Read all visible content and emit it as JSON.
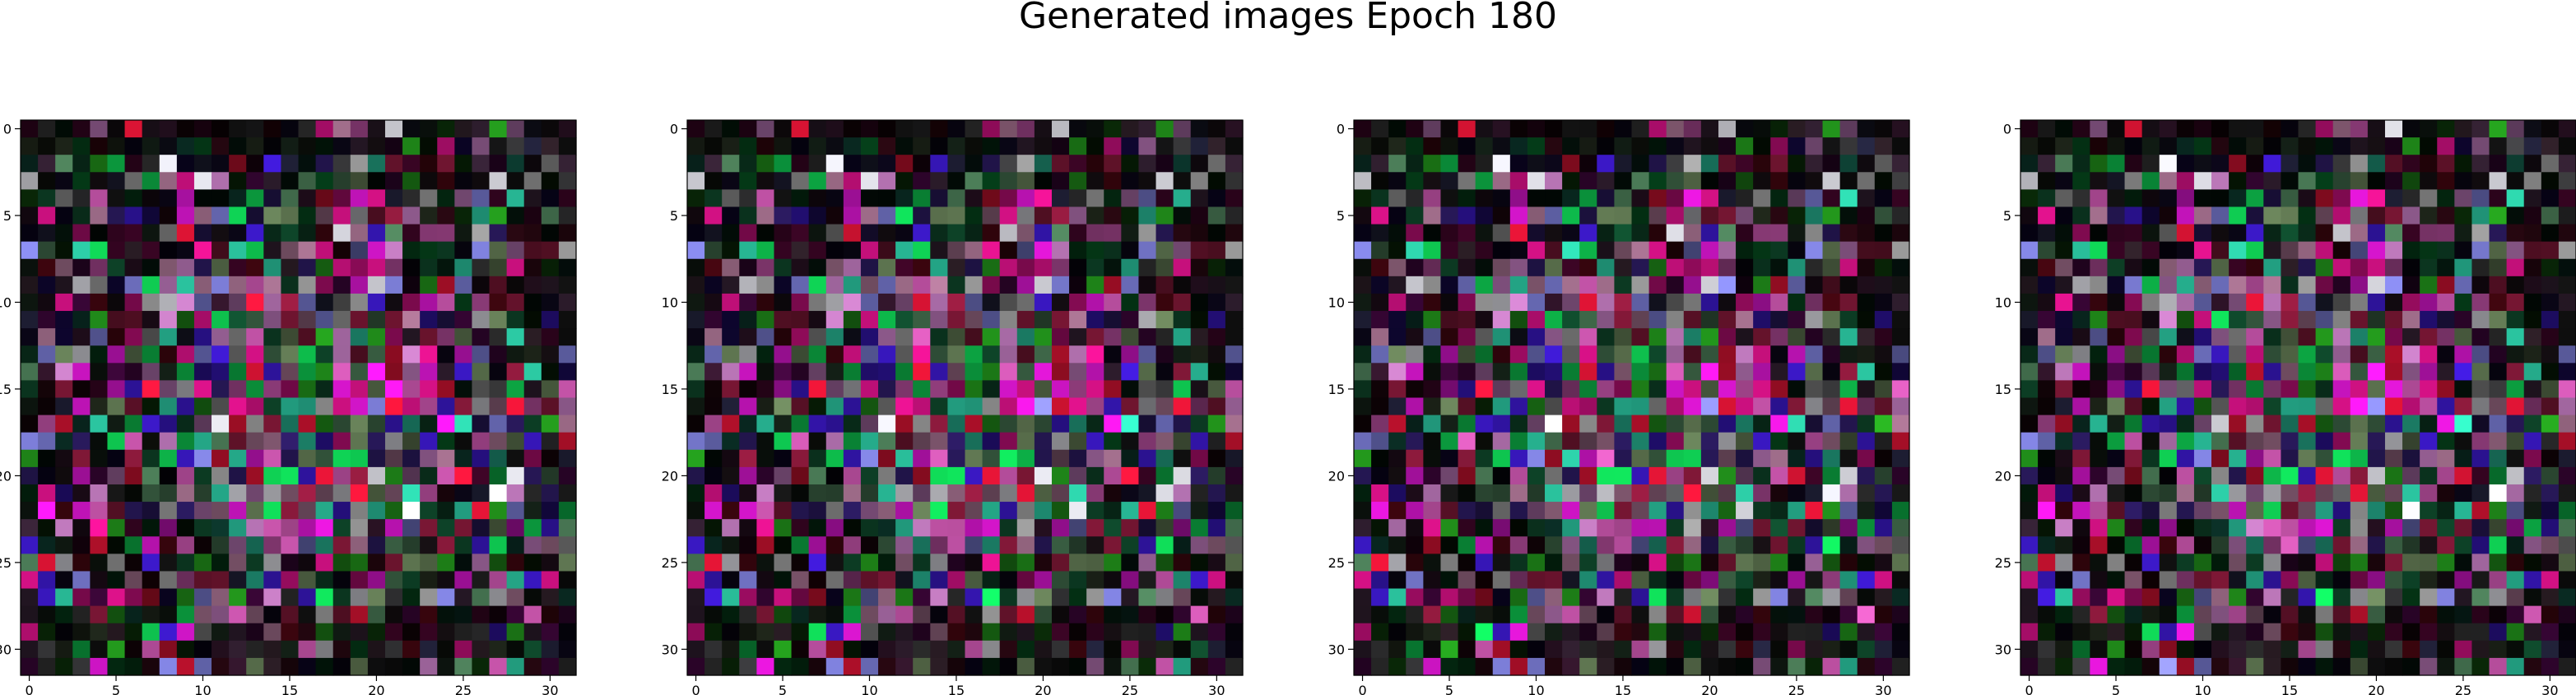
{
  "figure": {
    "title": "Generated images Epoch 180"
  },
  "chart_data": [
    {
      "type": "heatmap",
      "subtitle": "",
      "xlabel": "",
      "ylabel": "",
      "grid": false,
      "image_shape": [
        32,
        32,
        3
      ],
      "xlim": [
        -0.5,
        31.5
      ],
      "ylim": [
        31.5,
        -0.5
      ],
      "x_ticks": [
        0,
        5,
        10,
        15,
        20,
        25,
        30
      ],
      "y_ticks": [
        0,
        5,
        10,
        15,
        20,
        25,
        30
      ],
      "x_tick_labels": [
        "0",
        "5",
        "10",
        "15",
        "20",
        "25",
        "30"
      ],
      "y_tick_labels": [
        "0",
        "5",
        "10",
        "15",
        "20",
        "25",
        "30"
      ],
      "palette": [
        "#f118e6",
        "#e0128c",
        "#f5163a",
        "#8a8cf0",
        "#c77ec4",
        "#6f8a5f",
        "#4a7a56",
        "#2fd9b0",
        "#10e05a",
        "#25a11e",
        "#0f4a2c",
        "#2a1a5e",
        "#3a18c4",
        "#d45ab6",
        "#8c1a3c",
        "#b07898",
        "#9a9a9a",
        "#e8e8f0"
      ]
    },
    {
      "type": "heatmap",
      "subtitle": "",
      "xlabel": "",
      "ylabel": "",
      "grid": false,
      "image_shape": [
        32,
        32,
        3
      ],
      "xlim": [
        -0.5,
        31.5
      ],
      "ylim": [
        31.5,
        -0.5
      ],
      "x_ticks": [
        0,
        5,
        10,
        15,
        20,
        25,
        30
      ],
      "y_ticks": [
        0,
        5,
        10,
        15,
        20,
        25,
        30
      ],
      "x_tick_labels": [
        "0",
        "5",
        "10",
        "15",
        "20",
        "25",
        "30"
      ],
      "y_tick_labels": [
        "0",
        "5",
        "10",
        "15",
        "20",
        "25",
        "30"
      ],
      "palette": [
        "#f118e6",
        "#e0128c",
        "#f5163a",
        "#8a8cf0",
        "#c77ec4",
        "#6f8a5f",
        "#4a7a56",
        "#2fd9b0",
        "#10e05a",
        "#25a11e",
        "#0f4a2c",
        "#2a1a5e",
        "#3a18c4",
        "#d45ab6",
        "#8c1a3c",
        "#b07898",
        "#9a9a9a",
        "#e8e8f0"
      ]
    },
    {
      "type": "heatmap",
      "subtitle": "",
      "xlabel": "",
      "ylabel": "",
      "grid": false,
      "image_shape": [
        32,
        32,
        3
      ],
      "xlim": [
        -0.5,
        31.5
      ],
      "ylim": [
        31.5,
        -0.5
      ],
      "x_ticks": [
        0,
        5,
        10,
        15,
        20,
        25,
        30
      ],
      "y_ticks": [
        0,
        5,
        10,
        15,
        20,
        25,
        30
      ],
      "x_tick_labels": [
        "0",
        "5",
        "10",
        "15",
        "20",
        "25",
        "30"
      ],
      "y_tick_labels": [
        "0",
        "5",
        "10",
        "15",
        "20",
        "25",
        "30"
      ],
      "palette": [
        "#f118e6",
        "#e0128c",
        "#f5163a",
        "#8a8cf0",
        "#c77ec4",
        "#6f8a5f",
        "#4a7a56",
        "#2fd9b0",
        "#10e05a",
        "#25a11e",
        "#0f4a2c",
        "#2a1a5e",
        "#3a18c4",
        "#d45ab6",
        "#8c1a3c",
        "#b07898",
        "#9a9a9a",
        "#e8e8f0"
      ]
    },
    {
      "type": "heatmap",
      "subtitle": "",
      "xlabel": "",
      "ylabel": "",
      "grid": false,
      "image_shape": [
        32,
        32,
        3
      ],
      "xlim": [
        -0.5,
        31.5
      ],
      "ylim": [
        31.5,
        -0.5
      ],
      "x_ticks": [
        0,
        5,
        10,
        15,
        20,
        25,
        30
      ],
      "y_ticks": [
        0,
        5,
        10,
        15,
        20,
        25,
        30
      ],
      "x_tick_labels": [
        "0",
        "5",
        "10",
        "15",
        "20",
        "25",
        "30"
      ],
      "y_tick_labels": [
        "0",
        "5",
        "10",
        "15",
        "20",
        "25",
        "30"
      ],
      "palette": [
        "#f118e6",
        "#e0128c",
        "#f5163a",
        "#8a8cf0",
        "#c77ec4",
        "#6f8a5f",
        "#4a7a56",
        "#2fd9b0",
        "#10e05a",
        "#25a11e",
        "#0f4a2c",
        "#2a1a5e",
        "#3a18c4",
        "#d45ab6",
        "#8c1a3c",
        "#b07898",
        "#9a9a9a",
        "#e8e8f0"
      ]
    }
  ]
}
